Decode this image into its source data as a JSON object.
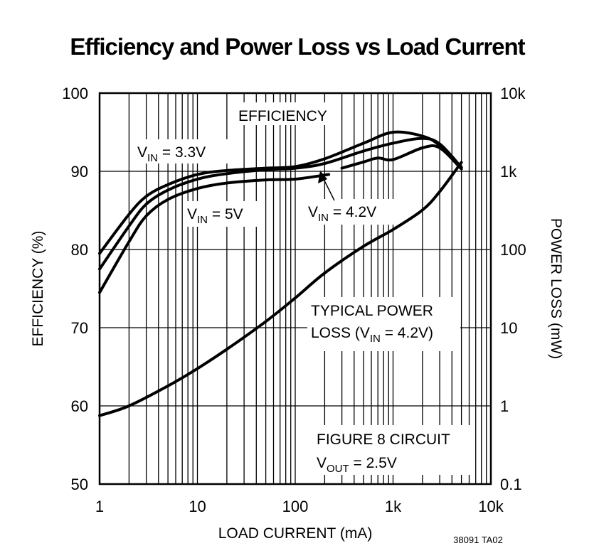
{
  "chart_data": {
    "type": "line",
    "title": "Efficiency and Power Loss vs Load Current",
    "xlabel": "LOAD CURRENT (mA)",
    "ylabel": "EFFICIENCY (%)",
    "y2label": "POWER LOSS (mW)",
    "xscale": "log",
    "xlim": [
      1,
      10000
    ],
    "ylim": [
      50,
      100
    ],
    "y2scale": "log",
    "y2lim": [
      0.1,
      10000
    ],
    "grid": true,
    "x_ticks": [
      "1",
      "10",
      "100",
      "1k",
      "10k"
    ],
    "y_ticks": [
      "50",
      "60",
      "70",
      "80",
      "90",
      "100"
    ],
    "y2_ticks": [
      "0.1",
      "1",
      "10",
      "100",
      "1k",
      "10k"
    ],
    "line_color": "#000000",
    "series": [
      {
        "label": "3.3V",
        "axis": "left",
        "x": [
          1,
          2,
          3,
          5,
          10,
          20,
          50,
          100,
          200,
          500,
          1000,
          2000,
          3000,
          5000
        ],
        "y": [
          79.5,
          84.5,
          86.8,
          88.3,
          89.6,
          90.1,
          90.4,
          90.6,
          91.6,
          93.6,
          95,
          94.5,
          93.3,
          90.5
        ]
      },
      {
        "label": "4.2V",
        "axis": "left",
        "x": [
          1,
          2,
          3,
          5,
          10,
          20,
          50,
          100,
          200,
          500,
          1000,
          2000,
          3000,
          5000
        ],
        "y": [
          77.5,
          83,
          85.8,
          87.6,
          89.0,
          89.7,
          90.2,
          90.4,
          91.0,
          92.6,
          93.6,
          94.2,
          93.5,
          90.5
        ]
      },
      {
        "label": "5V",
        "axis": "left",
        "x": [
          1,
          2,
          3,
          5,
          10,
          20,
          50,
          100,
          220
        ],
        "y": [
          74.5,
          81,
          84.3,
          86.4,
          87.8,
          88.5,
          88.9,
          89.0,
          89.6
        ]
      },
      {
        "label": "5V",
        "axis": "left",
        "x": [
          300,
          500,
          700,
          1000,
          2000,
          3000,
          5000
        ],
        "y": [
          90.4,
          91.2,
          91.7,
          91.5,
          93,
          93,
          90.3
        ]
      },
      {
        "label": "Power loss 4.2V",
        "axis": "right",
        "x": [
          1,
          2,
          5,
          10,
          20,
          50,
          100,
          200,
          500,
          1000,
          2000,
          3000,
          5000
        ],
        "y": [
          0.75,
          1.0,
          1.8,
          3.0,
          5.3,
          12,
          24,
          50,
          110,
          180,
          320,
          550,
          1300
        ]
      }
    ],
    "annotations": {
      "efficiency": "EFFICIENCY",
      "v": "V",
      "in": "IN",
      "out": "OUT",
      "v33": " = 3.3V",
      "v5": " = 5V",
      "v42": " = 4.2V",
      "loss1": "TYPICAL POWER",
      "loss2a": "LOSS (V",
      "loss2b": " = 4.2V)",
      "fig": "FIGURE 8 CIRCUIT",
      "vout": " = 2.5V",
      "code": "38091 TA02"
    }
  }
}
